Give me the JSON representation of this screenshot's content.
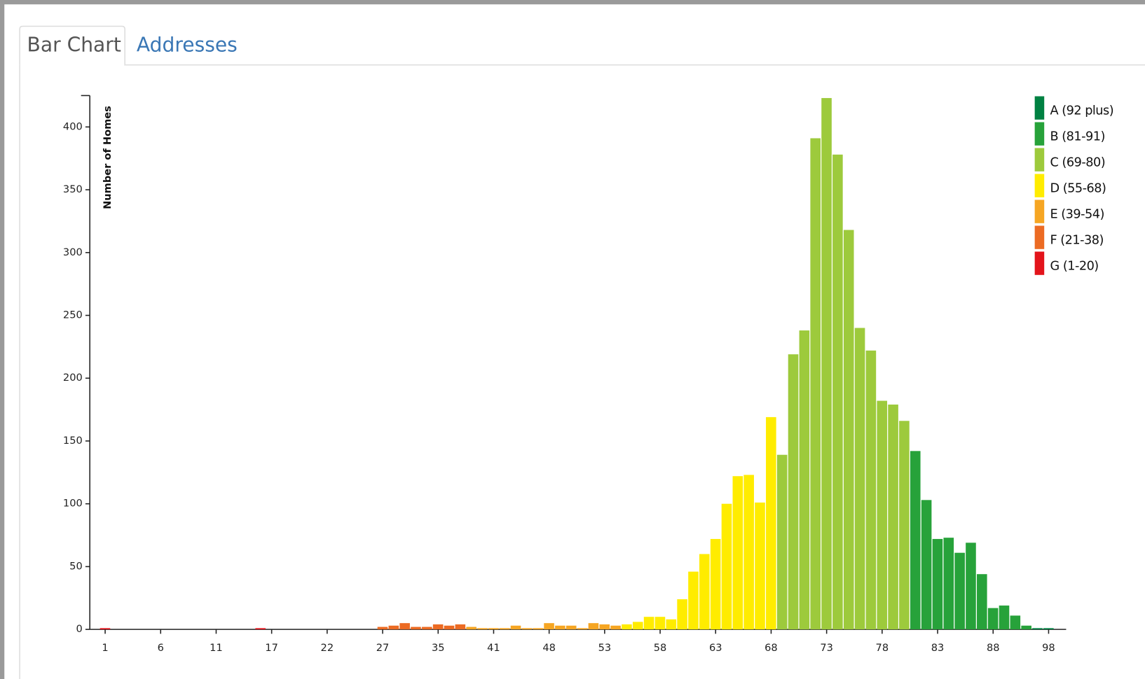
{
  "tabs": [
    "Bar Chart",
    "Addresses"
  ],
  "chart_data": {
    "type": "bar",
    "y_label": "Number of Homes",
    "categories": [
      "1",
      null,
      null,
      null,
      null,
      "6",
      null,
      null,
      null,
      null,
      "11",
      null,
      null,
      null,
      null,
      "17",
      null,
      null,
      null,
      null,
      "22",
      null,
      null,
      null,
      null,
      "27",
      null,
      null,
      null,
      null,
      "35",
      null,
      null,
      null,
      null,
      "41",
      null,
      null,
      null,
      null,
      "48",
      null,
      null,
      null,
      null,
      "53",
      null,
      null,
      null,
      null,
      "58",
      null,
      null,
      null,
      null,
      "63",
      null,
      null,
      null,
      null,
      "68",
      null,
      null,
      null,
      null,
      "73",
      null,
      null,
      null,
      null,
      "78",
      null,
      null,
      null,
      null,
      "83",
      null,
      null,
      null,
      null,
      "88",
      null,
      null,
      null,
      null,
      "98"
    ],
    "values": [
      1,
      0,
      0,
      0,
      0,
      0,
      0,
      0,
      0,
      0,
      0,
      0,
      0,
      0,
      1,
      0,
      0,
      0,
      0,
      0,
      0,
      0,
      0,
      0,
      0,
      2,
      3,
      5,
      2,
      2,
      4,
      3,
      4,
      2,
      1,
      1,
      1,
      3,
      1,
      1,
      5,
      3,
      3,
      1,
      5,
      4,
      3,
      4,
      6,
      10,
      10,
      8,
      24,
      46,
      60,
      72,
      100,
      122,
      123,
      101,
      169,
      139,
      219,
      238,
      391,
      423,
      378,
      318,
      240,
      222,
      182,
      179,
      166,
      142,
      103,
      72,
      73,
      61,
      69,
      44,
      17,
      19,
      11,
      3,
      1,
      1
    ],
    "colors": [
      "#e3141b",
      "#e3141b",
      "#e3141b",
      "#e3141b",
      "#e3141b",
      "#e3141b",
      "#e3141b",
      "#e3141b",
      "#e3141b",
      "#e3141b",
      "#e3141b",
      "#e3141b",
      "#e3141b",
      "#e3141b",
      "#e3141b",
      "#e3141b",
      "#e3141b",
      "#e3141b",
      "#e3141b",
      "#e3141b",
      "#e3141b",
      "#e3141b",
      "#e3141b",
      "#e3141b",
      "#e3141b",
      "#ec6b23",
      "#ec6b23",
      "#ec6b23",
      "#ec6b23",
      "#ec6b23",
      "#ec6b23",
      "#ec6b23",
      "#ec6b23",
      "#f6a623",
      "#f6a623",
      "#f6a623",
      "#f6a623",
      "#f6a623",
      "#f6a623",
      "#f6a623",
      "#f6a623",
      "#f6a623",
      "#f6a623",
      "#f6a623",
      "#f6a623",
      "#f6a623",
      "#f6a623",
      "#ffec00",
      "#ffec00",
      "#ffec00",
      "#ffec00",
      "#ffec00",
      "#ffec00",
      "#ffec00",
      "#ffec00",
      "#ffec00",
      "#ffec00",
      "#ffec00",
      "#ffec00",
      "#ffec00",
      "#ffec00",
      "#9dca3c",
      "#9dca3c",
      "#9dca3c",
      "#9dca3c",
      "#9dca3c",
      "#9dca3c",
      "#9dca3c",
      "#9dca3c",
      "#9dca3c",
      "#9dca3c",
      "#9dca3c",
      "#9dca3c",
      "#27a23a",
      "#27a23a",
      "#27a23a",
      "#27a23a",
      "#27a23a",
      "#27a23a",
      "#27a23a",
      "#27a23a",
      "#27a23a",
      "#27a23a",
      "#27a23a",
      "#008142",
      "#008142"
    ],
    "ylim": [
      0,
      425
    ],
    "yticks": [
      0,
      50,
      100,
      150,
      200,
      250,
      300,
      350,
      400
    ],
    "legend_position": "upper right",
    "series": [
      {
        "name": "A (92 plus)",
        "color": "#008142"
      },
      {
        "name": "B (81-91)",
        "color": "#27a23a"
      },
      {
        "name": "C (69-80)",
        "color": "#9dca3c"
      },
      {
        "name": "D (55-68)",
        "color": "#ffec00"
      },
      {
        "name": "E (39-54)",
        "color": "#f6a623"
      },
      {
        "name": "F (21-38)",
        "color": "#ec6b23"
      },
      {
        "name": "G (1-20)",
        "color": "#e3141b"
      }
    ]
  }
}
